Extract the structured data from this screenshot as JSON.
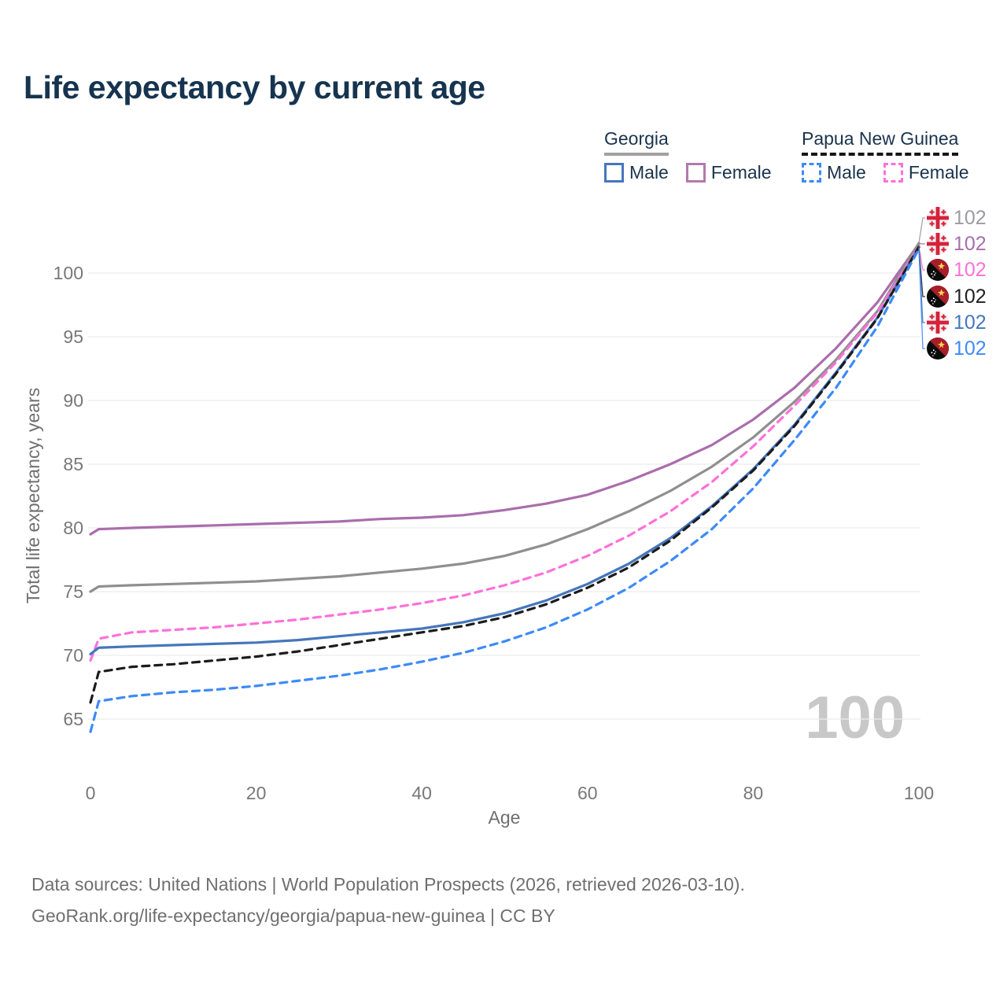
{
  "title": "Life expectancy by current age",
  "legend": {
    "groups": [
      {
        "label": "Georgia",
        "underline_style": "solid",
        "underline_color": "#a1a1a1",
        "items": [
          {
            "label": "Male",
            "color": "#4576bc",
            "dashed": false
          },
          {
            "label": "Female",
            "color": "#b279ae",
            "dashed": false
          }
        ]
      },
      {
        "label": "Papua New Guinea",
        "underline_style": "dashed",
        "underline_color": "#161616",
        "items": [
          {
            "label": "Male",
            "color": "#3d8af7",
            "dashed": true
          },
          {
            "label": "Female",
            "color": "#ff70d8",
            "dashed": true
          }
        ]
      }
    ]
  },
  "chart_data": {
    "type": "line",
    "title": "Life expectancy by current age",
    "xlabel": "Age",
    "ylabel": "Total life expectancy, years",
    "xticks": [
      0,
      20,
      40,
      60,
      80,
      100
    ],
    "yticks": [
      65,
      70,
      75,
      80,
      85,
      90,
      95,
      100
    ],
    "xlim": [
      0,
      100
    ],
    "ylim": [
      62,
      103
    ],
    "grid": true,
    "x": [
      0,
      1,
      5,
      10,
      15,
      20,
      25,
      30,
      35,
      40,
      45,
      50,
      55,
      60,
      65,
      70,
      75,
      80,
      85,
      90,
      95,
      100
    ],
    "series": [
      {
        "name": "Georgia Female",
        "country": "Georgia",
        "sex": "Female",
        "color": "#aa6dac",
        "dashed": false,
        "values": [
          79.5,
          79.9,
          80.0,
          80.1,
          80.2,
          80.3,
          80.4,
          80.5,
          80.7,
          80.8,
          81.0,
          81.4,
          81.9,
          82.6,
          83.7,
          85.0,
          86.5,
          88.5,
          91.0,
          94.1,
          97.7,
          102.3
        ]
      },
      {
        "name": "Georgia Both sexes",
        "country": "Georgia",
        "sex": "Both",
        "color": "#8f8f8f",
        "dashed": false,
        "values": [
          75.0,
          75.4,
          75.5,
          75.6,
          75.7,
          75.8,
          76.0,
          76.2,
          76.5,
          76.8,
          77.2,
          77.8,
          78.7,
          79.9,
          81.3,
          82.9,
          84.8,
          87.1,
          89.9,
          93.2,
          97.0,
          102.35
        ]
      },
      {
        "name": "Papua New Guinea Female",
        "country": "Papua New Guinea",
        "sex": "Female",
        "color": "#ff70d8",
        "dashed": true,
        "values": [
          69.6,
          71.3,
          71.8,
          72.0,
          72.2,
          72.5,
          72.8,
          73.2,
          73.6,
          74.1,
          74.7,
          75.5,
          76.5,
          77.8,
          79.4,
          81.3,
          83.6,
          86.4,
          89.6,
          93.0,
          96.9,
          102.1
        ]
      },
      {
        "name": "Georgia Male",
        "country": "Georgia",
        "sex": "Male",
        "color": "#4576bc",
        "dashed": false,
        "values": [
          70.1,
          70.6,
          70.7,
          70.8,
          70.9,
          71.0,
          71.2,
          71.5,
          71.8,
          72.1,
          72.6,
          73.3,
          74.3,
          75.6,
          77.2,
          79.2,
          81.7,
          84.6,
          88.1,
          92.2,
          96.5,
          102.0
        ]
      },
      {
        "name": "Papua New Guinea Both sexes",
        "country": "Papua New Guinea",
        "sex": "Both",
        "color": "#1c1c1c",
        "dashed": true,
        "values": [
          66.3,
          68.7,
          69.1,
          69.3,
          69.6,
          69.9,
          70.3,
          70.8,
          71.3,
          71.8,
          72.3,
          73.0,
          74.0,
          75.3,
          76.9,
          79.0,
          81.6,
          84.5,
          88.0,
          92.1,
          96.45,
          102.05
        ]
      },
      {
        "name": "Papua New Guinea Male",
        "country": "Papua New Guinea",
        "sex": "Male",
        "color": "#3d8af7",
        "dashed": true,
        "values": [
          64.0,
          66.4,
          66.8,
          67.1,
          67.3,
          67.6,
          68.0,
          68.4,
          68.9,
          69.5,
          70.2,
          71.1,
          72.2,
          73.6,
          75.3,
          77.4,
          79.9,
          83.1,
          86.9,
          91.0,
          95.8,
          101.9
        ]
      }
    ],
    "end_labels": [
      {
        "value": "102",
        "flag": "georgia",
        "color": "#9b9ba1",
        "series": "Georgia Both sexes"
      },
      {
        "value": "102",
        "flag": "georgia",
        "color": "#a76fad",
        "series": "Georgia Female"
      },
      {
        "value": "102",
        "flag": "png",
        "color": "#ff70d8",
        "series": "Papua New Guinea Female"
      },
      {
        "value": "102",
        "flag": "png",
        "color": "#202020",
        "series": "Papua New Guinea Both sexes"
      },
      {
        "value": "102",
        "flag": "georgia",
        "color": "#4576bc",
        "series": "Georgia Male"
      },
      {
        "value": "102",
        "flag": "png",
        "color": "#3d8af7",
        "series": "Papua New Guinea Male"
      }
    ],
    "watermark": "100",
    "legend_position": "top-right"
  },
  "footer": {
    "line1": "Data sources: United Nations | World Population Prospects (2026, retrieved 2026-03-10).",
    "line2": "GeoRank.org/life-expectancy/georgia/papua-new-guinea | CC BY"
  }
}
